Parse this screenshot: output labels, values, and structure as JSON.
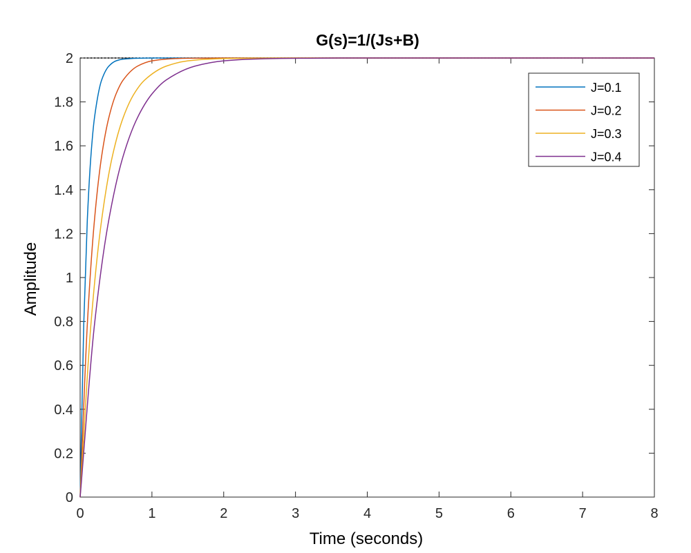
{
  "chart_data": {
    "type": "line",
    "title": "G(s)=1/(Js+B)",
    "xlabel": "Time (seconds)",
    "ylabel": "Amplitude",
    "xlim": [
      0,
      8
    ],
    "ylim": [
      0,
      2
    ],
    "xticks": [
      0,
      1,
      2,
      3,
      4,
      5,
      6,
      7,
      8
    ],
    "yticks": [
      0,
      0.2,
      0.4,
      0.6,
      0.8,
      1,
      1.2,
      1.4,
      1.6,
      1.8,
      2
    ],
    "xtick_labels": [
      "0",
      "1",
      "2",
      "3",
      "4",
      "5",
      "6",
      "7",
      "8"
    ],
    "ytick_labels": [
      "0",
      "0.2",
      "0.4",
      "0.6",
      "0.8",
      "1",
      "1.2",
      "1.4",
      "1.6",
      "1.8",
      "2"
    ],
    "grid": false,
    "legend_position": "top-right",
    "steady_state": 2,
    "series": [
      {
        "name": "J=0.1",
        "color": "#0072BD",
        "x": [
          0,
          0.05,
          0.1,
          0.15,
          0.2,
          0.3,
          0.4,
          0.5,
          0.6,
          0.8,
          1.0,
          1.2,
          1.5,
          2,
          3,
          4,
          5,
          6,
          7,
          8
        ],
        "values": [
          0,
          0.787,
          1.264,
          1.554,
          1.729,
          1.9,
          1.963,
          1.987,
          1.995,
          1.999,
          2.0,
          2.0,
          2.0,
          2.0,
          2.0,
          2.0,
          2.0,
          2.0,
          2.0,
          2.0
        ]
      },
      {
        "name": "J=0.2",
        "color": "#D95319",
        "x": [
          0,
          0.1,
          0.2,
          0.3,
          0.4,
          0.5,
          0.6,
          0.8,
          1.0,
          1.2,
          1.5,
          2,
          2.5,
          3,
          4,
          5,
          6,
          7,
          8
        ],
        "values": [
          0,
          0.787,
          1.264,
          1.554,
          1.729,
          1.836,
          1.9,
          1.963,
          1.987,
          1.995,
          1.999,
          2.0,
          2.0,
          2.0,
          2.0,
          2.0,
          2.0,
          2.0,
          2.0
        ]
      },
      {
        "name": "J=0.3",
        "color": "#EDB120",
        "x": [
          0,
          0.15,
          0.3,
          0.45,
          0.6,
          0.75,
          0.9,
          1.2,
          1.5,
          1.8,
          2.1,
          2.5,
          3,
          3.5,
          4,
          5,
          6,
          7,
          8
        ],
        "values": [
          0,
          0.787,
          1.264,
          1.554,
          1.729,
          1.836,
          1.9,
          1.963,
          1.987,
          1.995,
          1.998,
          1.999,
          2.0,
          2.0,
          2.0,
          2.0,
          2.0,
          2.0,
          2.0
        ]
      },
      {
        "name": "J=0.4",
        "color": "#7E2F8E",
        "x": [
          0,
          0.2,
          0.4,
          0.6,
          0.8,
          1.0,
          1.2,
          1.6,
          2.0,
          2.4,
          2.8,
          3.2,
          3.6,
          4,
          4.5,
          5,
          6,
          7,
          8
        ],
        "values": [
          0,
          0.787,
          1.264,
          1.554,
          1.729,
          1.836,
          1.9,
          1.963,
          1.987,
          1.995,
          1.998,
          1.999,
          2.0,
          2.0,
          2.0,
          2.0,
          2.0,
          2.0,
          2.0
        ]
      }
    ]
  }
}
